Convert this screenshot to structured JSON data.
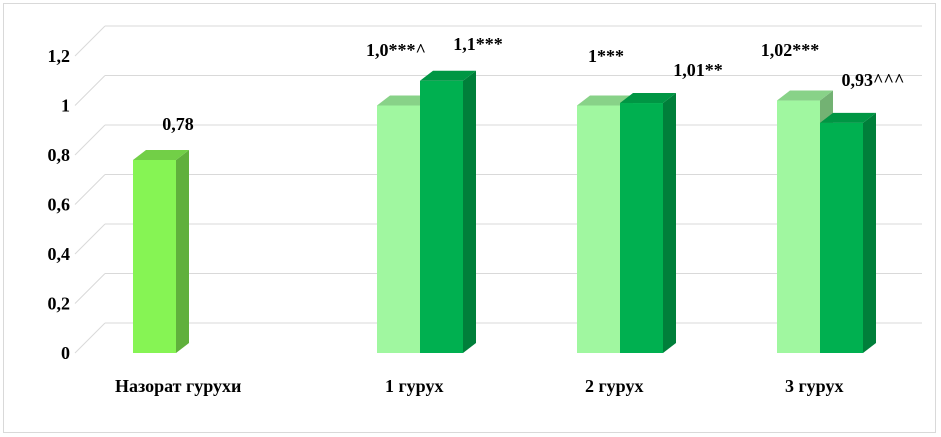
{
  "chart_data": {
    "type": "bar",
    "title": "",
    "xlabel": "",
    "ylabel": "",
    "ylim": [
      0,
      1.2
    ],
    "yticks": [
      "0",
      "0,2",
      "0,4",
      "0,6",
      "0,8",
      "1",
      "1,2"
    ],
    "grid": true,
    "legend": "none",
    "style": "3d-clustered-column",
    "categories": [
      "Назорат гурухи",
      "1 гурух",
      "2 гурух",
      "3 гурух"
    ],
    "bars": [
      {
        "category": "Назорат гурухи",
        "slot": "single",
        "value": 0.78,
        "label": "0,78",
        "color": "#86f454"
      },
      {
        "category": "1 гурух",
        "slot": "left",
        "value": 1.0,
        "label": "1,0***^",
        "color": "#a0f7a0"
      },
      {
        "category": "1 гурух",
        "slot": "right",
        "value": 1.1,
        "label": "1,1***",
        "color": "#00b050"
      },
      {
        "category": "2 гурух",
        "slot": "left",
        "value": 1.0,
        "label": "1***",
        "color": "#a0f7a0"
      },
      {
        "category": "2 гурух",
        "slot": "right",
        "value": 1.01,
        "label": "1,01**",
        "color": "#00b050"
      },
      {
        "category": "3 гурух",
        "slot": "left",
        "value": 1.02,
        "label": "1,02***",
        "color": "#a0f7a0"
      },
      {
        "category": "3 гурух",
        "slot": "right",
        "value": 0.93,
        "label": "0,93^^^",
        "color": "#00b050"
      }
    ]
  }
}
